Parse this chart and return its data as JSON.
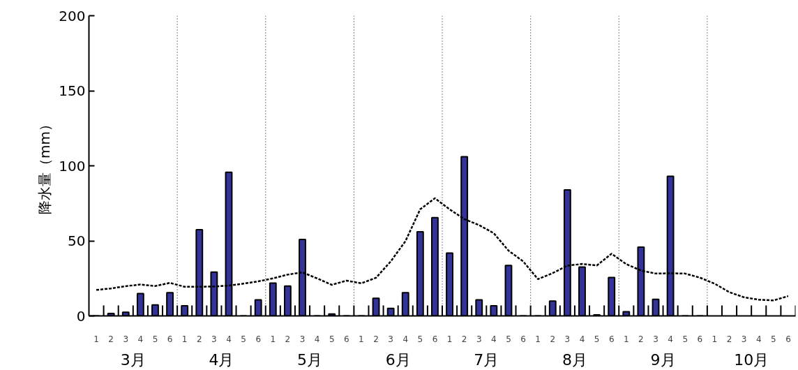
{
  "chart_data": {
    "type": "bar",
    "ylabel": "降水量（mm）",
    "categories": [
      "1",
      "2",
      "3",
      "4",
      "5",
      "6",
      "1",
      "2",
      "3",
      "4",
      "5",
      "6",
      "1",
      "2",
      "3",
      "4",
      "5",
      "6",
      "1",
      "2",
      "3",
      "4",
      "5",
      "6",
      "1",
      "2",
      "3",
      "4",
      "5",
      "6",
      "1",
      "2",
      "3",
      "4",
      "5",
      "6",
      "1",
      "2",
      "3",
      "4",
      "5",
      "6",
      "1",
      "2",
      "3",
      "4",
      "5",
      "6"
    ],
    "series": [
      {
        "color": "#333399",
        "values": [
          0,
          1.6,
          2.5,
          14.9,
          7.3,
          15.5,
          6.7,
          57.5,
          29.2,
          95.7,
          0,
          10.7,
          21.9,
          19.9,
          50.9,
          0,
          1.3,
          0,
          0,
          11.7,
          5.0,
          15.5,
          56.1,
          65.5,
          41.9,
          106,
          10.7,
          6.7,
          33.6,
          0,
          0,
          9.9,
          84,
          32.6,
          0.7,
          25.6,
          2.8,
          45.8,
          11.1,
          93.0,
          0,
          0,
          null,
          null,
          null,
          null,
          null,
          null
        ]
      },
      {
        "type": "line",
        "color": "#000000",
        "line_style": "dashed",
        "values": [
          17.3,
          18.3,
          19.8,
          20.9,
          19.9,
          22.0,
          19.4,
          19.4,
          19.6,
          20.2,
          21.5,
          23,
          25,
          27.5,
          29,
          25,
          20.7,
          23.5,
          21.7,
          25.4,
          36.3,
          49.8,
          71,
          78.4,
          71,
          64.5,
          60.5,
          55.1,
          43.5,
          36.3,
          24.5,
          28.5,
          33.5,
          34.6,
          33.6,
          41.4,
          34.5,
          30.2,
          28.2,
          28.4,
          28.2,
          25.5,
          21.5,
          15.8,
          12.4,
          10.8,
          10.3,
          13.2
        ]
      }
    ],
    "annotations": [
      "3月",
      "4月",
      "5月",
      "6月",
      "7月",
      "8月",
      "9月",
      "10月"
    ],
    "ylim": [
      0,
      200
    ],
    "yticks": [
      0,
      50,
      100,
      150,
      200
    ],
    "grid": false
  }
}
